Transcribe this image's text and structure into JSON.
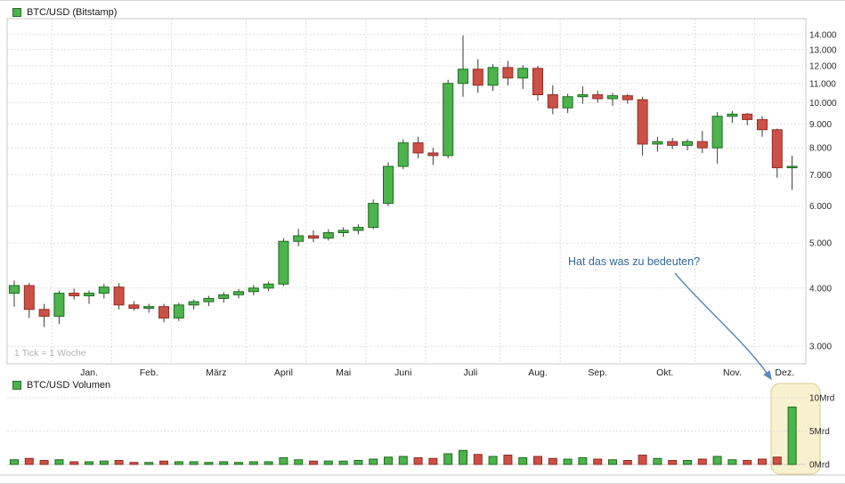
{
  "price_chart": {
    "legend": "BTC/USD (Bitstamp)",
    "footnote": "1 Tick = 1 Woche"
  },
  "volume_chart": {
    "legend": "BTC/USD Volumen"
  },
  "annotation": {
    "text": "Hat das was zu bedeuten?"
  },
  "colors": {
    "up_fill": "#4db34d",
    "up_border": "#1e6b1e",
    "down_fill": "#cc5045",
    "down_border": "#8f2f27",
    "wick": "#3a3a3a",
    "grid": "#dedede",
    "plot_border": "#c9c9c9",
    "axis_text": "#2a2a2a",
    "highlight_fill": "#f7f1cf",
    "highlight_border": "#d9ca8e",
    "arrow": "#5b8ab8"
  },
  "chart_data": [
    {
      "type": "candlestick",
      "title": "BTC/USD (Bitstamp)",
      "interval": "1 Tick = 1 Woche",
      "y_scale": "log",
      "y_unit": "USD",
      "ylim": [
        2750,
        14300
      ],
      "y_ticks": [
        3000,
        4000,
        5000,
        6000,
        7000,
        8000,
        9000,
        10000,
        11000,
        12000,
        13000,
        14000
      ],
      "y_tick_labels": [
        "3.000",
        "4.000",
        "5.000",
        "6.000",
        "7.000",
        "8.000",
        "9.000",
        "10.000",
        "11.000",
        "12.000",
        "13.000",
        "14.000"
      ],
      "months": [
        {
          "label": "Jan.",
          "start": 3
        },
        {
          "label": "Feb.",
          "start": 7
        },
        {
          "label": "März",
          "start": 11
        },
        {
          "label": "April",
          "start": 16
        },
        {
          "label": "Mai",
          "start": 20
        },
        {
          "label": "Juni",
          "start": 24
        },
        {
          "label": "Juli",
          "start": 28
        },
        {
          "label": "Aug.",
          "start": 33
        },
        {
          "label": "Sep.",
          "start": 37
        },
        {
          "label": "Okt.",
          "start": 41
        },
        {
          "label": "Nov.",
          "start": 46
        },
        {
          "label": "Dez.",
          "start": 50
        }
      ],
      "end_index": 53,
      "ohlc": [
        [
          3900,
          4150,
          3650,
          4050
        ],
        [
          4050,
          4100,
          3450,
          3600
        ],
        [
          3600,
          3700,
          3300,
          3480
        ],
        [
          3480,
          3950,
          3350,
          3900
        ],
        [
          3900,
          3990,
          3780,
          3850
        ],
        [
          3850,
          3950,
          3700,
          3900
        ],
        [
          3900,
          4080,
          3800,
          4020
        ],
        [
          4020,
          4100,
          3600,
          3680
        ],
        [
          3680,
          3750,
          3580,
          3620
        ],
        [
          3620,
          3700,
          3540,
          3650
        ],
        [
          3650,
          3700,
          3380,
          3450
        ],
        [
          3450,
          3720,
          3400,
          3680
        ],
        [
          3680,
          3780,
          3600,
          3740
        ],
        [
          3740,
          3850,
          3660,
          3800
        ],
        [
          3800,
          3920,
          3720,
          3870
        ],
        [
          3870,
          3980,
          3800,
          3930
        ],
        [
          3930,
          4060,
          3860,
          4000
        ],
        [
          4000,
          4130,
          3940,
          4080
        ],
        [
          4080,
          5120,
          4040,
          5040
        ],
        [
          5040,
          5360,
          4920,
          5180
        ],
        [
          5180,
          5320,
          5020,
          5120
        ],
        [
          5120,
          5350,
          5060,
          5260
        ],
        [
          5260,
          5400,
          5150,
          5320
        ],
        [
          5320,
          5480,
          5220,
          5400
        ],
        [
          5400,
          6200,
          5350,
          6080
        ],
        [
          6080,
          7450,
          6000,
          7300
        ],
        [
          7300,
          8350,
          7200,
          8200
        ],
        [
          8200,
          8450,
          7600,
          7800
        ],
        [
          7800,
          8000,
          7350,
          7700
        ],
        [
          7700,
          11200,
          7600,
          11000
        ],
        [
          11000,
          13950,
          10300,
          11800
        ],
        [
          11800,
          12400,
          10500,
          10900
        ],
        [
          10900,
          12100,
          10600,
          11900
        ],
        [
          11900,
          12300,
          10900,
          11300
        ],
        [
          11300,
          12050,
          10700,
          11850
        ],
        [
          11850,
          12000,
          10100,
          10400
        ],
        [
          10400,
          10900,
          9450,
          9750
        ],
        [
          9750,
          10450,
          9500,
          10300
        ],
        [
          10300,
          10850,
          9950,
          10400
        ],
        [
          10400,
          10600,
          10000,
          10200
        ],
        [
          10200,
          10500,
          9850,
          10350
        ],
        [
          10350,
          10450,
          9950,
          10150
        ],
        [
          10150,
          10300,
          7700,
          8150
        ],
        [
          8150,
          8450,
          7850,
          8250
        ],
        [
          8250,
          8400,
          7950,
          8100
        ],
        [
          8100,
          8350,
          7900,
          8250
        ],
        [
          8250,
          8700,
          7800,
          8000
        ],
        [
          8000,
          9550,
          7400,
          9350
        ],
        [
          9350,
          9600,
          9050,
          9450
        ],
        [
          9450,
          9500,
          8950,
          9200
        ],
        [
          9200,
          9350,
          8450,
          8750
        ],
        [
          8750,
          8800,
          6900,
          7250
        ],
        [
          7250,
          7700,
          6500,
          7300
        ]
      ]
    },
    {
      "type": "bar",
      "title": "BTC/USD Volumen",
      "y_unit": "Mrd",
      "ylim": [
        0,
        11
      ],
      "y_ticks": [
        0,
        5,
        10
      ],
      "y_tick_labels": [
        "0Mrd",
        "5Mrd",
        "10Mrd"
      ],
      "values_mrd": [
        0.7,
        0.9,
        0.6,
        0.7,
        0.4,
        0.4,
        0.5,
        0.6,
        0.3,
        0.3,
        0.5,
        0.4,
        0.4,
        0.3,
        0.4,
        0.3,
        0.4,
        0.4,
        1.0,
        0.7,
        0.5,
        0.5,
        0.5,
        0.6,
        0.8,
        1.1,
        1.2,
        1.0,
        0.9,
        1.6,
        2.1,
        1.5,
        1.2,
        1.4,
        1.0,
        1.2,
        0.9,
        0.8,
        1.0,
        0.8,
        0.7,
        0.6,
        1.4,
        0.9,
        0.6,
        0.6,
        0.8,
        1.2,
        0.7,
        0.6,
        0.8,
        1.1,
        8.6
      ],
      "highlight": {
        "from_index": 51,
        "to_index": 52,
        "note": "Hat das was zu bedeuten?"
      }
    }
  ]
}
